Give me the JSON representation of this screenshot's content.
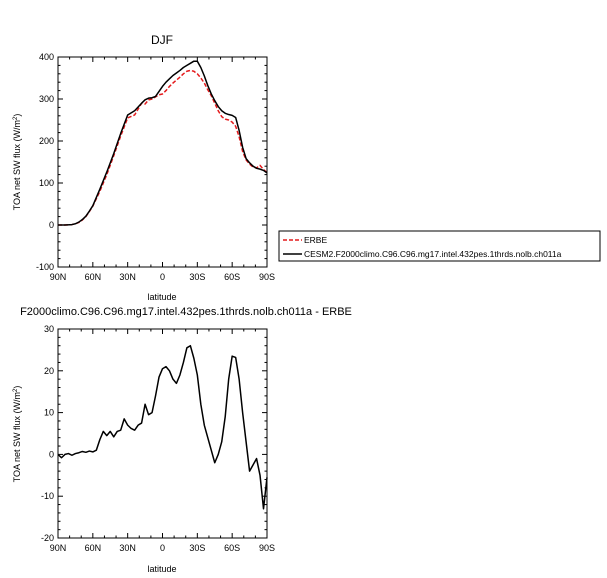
{
  "chart_data": [
    {
      "type": "line",
      "title": "DJF",
      "xlabel": "latitude",
      "ylabel": "TOA net SW flux (W/m²)",
      "ylabel_main": "TOA net SW flux (W/m",
      "ylabel_sup": "2",
      "ylabel_close": ")",
      "xlim": [
        -90,
        90
      ],
      "ylim": [
        -100,
        400
      ],
      "xticks": [
        -90,
        -60,
        -30,
        0,
        30,
        60,
        90
      ],
      "xticklabels": [
        "90N",
        "60N",
        "30N",
        "0",
        "30S",
        "60S",
        "90S"
      ],
      "yticks": [
        -100,
        0,
        100,
        200,
        300,
        400
      ],
      "yticklabels": [
        "-100",
        "0",
        "100",
        "200",
        "300",
        "400"
      ],
      "legend_placement": "right",
      "series": [
        {
          "name": "ERBE",
          "color": "#e41a1c",
          "dash": "dashed",
          "x": [
            -90,
            -84,
            -78,
            -75,
            -72,
            -69,
            -66,
            -63,
            -60,
            -54,
            -48,
            -42,
            -36,
            -30,
            -24,
            -18,
            -15,
            -12,
            -9,
            -6,
            -3,
            0,
            3,
            6,
            9,
            12,
            15,
            18,
            21,
            24,
            27,
            30,
            33,
            36,
            39,
            42,
            45,
            48,
            51,
            54,
            57,
            60,
            63,
            66,
            69,
            72,
            75,
            78,
            81,
            84,
            87,
            90
          ],
          "y": [
            0,
            0,
            1,
            3,
            6,
            12,
            20,
            32,
            45,
            80,
            120,
            165,
            212,
            255,
            262,
            290,
            288,
            298,
            300,
            305,
            310,
            312,
            320,
            330,
            338,
            345,
            352,
            360,
            366,
            368,
            366,
            360,
            350,
            338,
            322,
            308,
            290,
            272,
            258,
            252,
            250,
            245,
            235,
            210,
            175,
            155,
            145,
            138,
            136,
            142,
            132,
            125
          ]
        },
        {
          "name": "CESM2.F2000climo.C96.C96.mg17.intel.432pes.1thrds.nolb.ch011a",
          "color": "#000000",
          "dash": "solid",
          "x": [
            -90,
            -84,
            -78,
            -75,
            -72,
            -69,
            -66,
            -63,
            -60,
            -54,
            -48,
            -42,
            -36,
            -30,
            -24,
            -18,
            -15,
            -12,
            -9,
            -6,
            -3,
            0,
            3,
            6,
            9,
            12,
            15,
            18,
            21,
            24,
            27,
            30,
            33,
            36,
            39,
            42,
            45,
            48,
            51,
            54,
            57,
            60,
            63,
            66,
            69,
            72,
            75,
            78,
            81,
            84,
            87,
            90
          ],
          "y": [
            0,
            0,
            1,
            3,
            7,
            13,
            21,
            33,
            46,
            85,
            126,
            170,
            218,
            262,
            272,
            290,
            298,
            302,
            303,
            306,
            318,
            330,
            340,
            348,
            356,
            362,
            368,
            375,
            380,
            385,
            390,
            390,
            375,
            355,
            332,
            312,
            296,
            282,
            272,
            266,
            263,
            261,
            256,
            225,
            185,
            158,
            148,
            140,
            135,
            133,
            130,
            124
          ]
        }
      ]
    },
    {
      "type": "line",
      "title": "F2000climo.C96.C96.mg17.intel.432pes.1thrds.nolb.ch011a - ERBE",
      "xlabel": "latitude",
      "ylabel": "TOA net SW flux (W/m²)",
      "ylabel_main": "TOA net SW flux (W/m",
      "ylabel_sup": "2",
      "ylabel_close": ")",
      "xlim": [
        -90,
        90
      ],
      "ylim": [
        -20,
        30
      ],
      "xticks": [
        -90,
        -60,
        -30,
        0,
        30,
        60,
        90
      ],
      "xticklabels": [
        "90N",
        "60N",
        "30N",
        "0",
        "30S",
        "60S",
        "90S"
      ],
      "yticks": [
        -20,
        -10,
        0,
        10,
        20,
        30
      ],
      "yticklabels": [
        "-20",
        "-10",
        "0",
        "10",
        "20",
        "30"
      ],
      "series": [
        {
          "color": "#000000",
          "x": [
            -90,
            -87,
            -84,
            -81,
            -78,
            -75,
            -72,
            -69,
            -66,
            -63,
            -60,
            -57,
            -54,
            -51,
            -48,
            -45,
            -42,
            -39,
            -36,
            -33,
            -30,
            -27,
            -24,
            -21,
            -18,
            -15,
            -12,
            -9,
            -6,
            -3,
            0,
            3,
            6,
            9,
            12,
            15,
            18,
            21,
            24,
            27,
            30,
            33,
            36,
            39,
            42,
            45,
            48,
            51,
            54,
            57,
            60,
            63,
            66,
            69,
            72,
            75,
            78,
            81,
            84,
            87,
            90
          ],
          "y": [
            0,
            -0.8,
            0,
            0.2,
            -0.2,
            0.2,
            0.4,
            0.7,
            0.5,
            0.8,
            0.6,
            1.0,
            3.5,
            5.5,
            4.5,
            5.5,
            4.2,
            5.5,
            5.8,
            8.5,
            7.0,
            6.2,
            5.8,
            7.0,
            7.5,
            12.0,
            9.5,
            10.0,
            14.0,
            18.5,
            20.5,
            21.0,
            20.0,
            18.0,
            17.0,
            19.0,
            22.0,
            25.5,
            26.0,
            23.0,
            19.0,
            12.0,
            7.0,
            4.0,
            1.0,
            -2.0,
            0.0,
            3.0,
            9.0,
            18.0,
            23.5,
            23.2,
            18.0,
            10.0,
            3.0,
            -4.0,
            -2.5,
            -1.0,
            -5.0,
            -13.0,
            -5.5
          ]
        }
      ]
    }
  ]
}
